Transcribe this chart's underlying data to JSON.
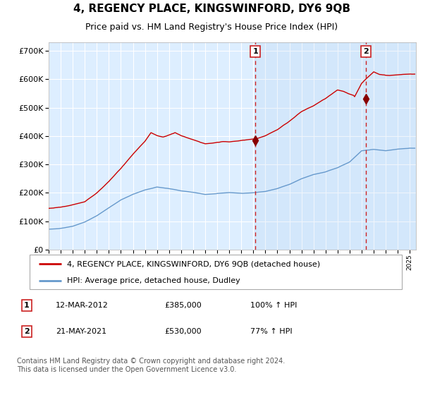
{
  "title": "4, REGENCY PLACE, KINGSWINFORD, DY6 9QB",
  "subtitle": "Price paid vs. HM Land Registry's House Price Index (HPI)",
  "ylabel_ticks": [
    "£0",
    "£100K",
    "£200K",
    "£300K",
    "£400K",
    "£500K",
    "£600K",
    "£700K"
  ],
  "ytick_values": [
    0,
    100000,
    200000,
    300000,
    400000,
    500000,
    600000,
    700000
  ],
  "ylim": [
    0,
    730000
  ],
  "xlim_start": 1995.0,
  "xlim_end": 2025.5,
  "background_color": "#ffffff",
  "plot_bg_color": "#ddeeff",
  "grid_color": "#ffffff",
  "sale1": {
    "date_num": 2012.18,
    "price": 385000,
    "label": "1",
    "date_str": "12-MAR-2012",
    "pct": "100%"
  },
  "sale2": {
    "date_num": 2021.38,
    "price": 530000,
    "label": "2",
    "date_str": "21-MAY-2021",
    "pct": "77%"
  },
  "legend_line1": "4, REGENCY PLACE, KINGSWINFORD, DY6 9QB (detached house)",
  "legend_line2": "HPI: Average price, detached house, Dudley",
  "footer": "Contains HM Land Registry data © Crown copyright and database right 2024.\nThis data is licensed under the Open Government Licence v3.0.",
  "red_line_color": "#cc0000",
  "blue_line_color": "#6699cc",
  "marker_color": "#880000",
  "title_fontsize": 11,
  "subtitle_fontsize": 9,
  "tick_fontsize": 8,
  "legend_fontsize": 8,
  "table_fontsize": 8,
  "footer_fontsize": 7
}
